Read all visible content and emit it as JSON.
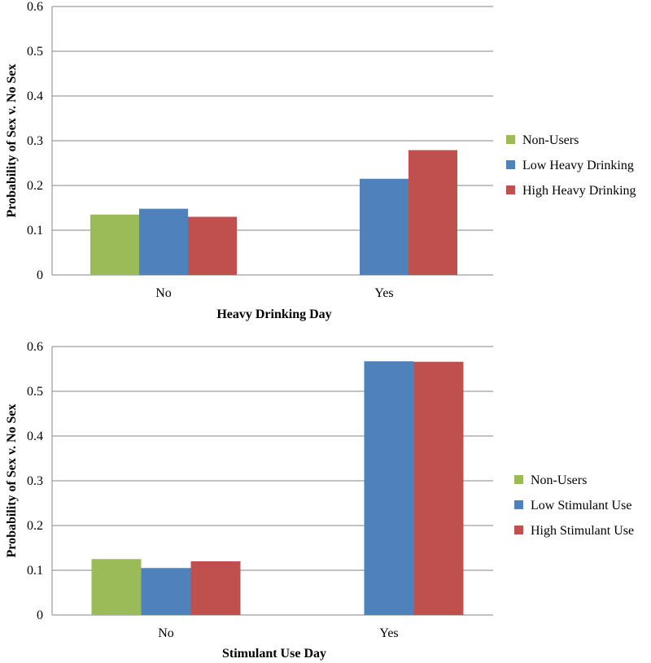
{
  "colors": {
    "Non-Users": "#9bbb59",
    "Low": "#4f81bd",
    "High": "#c0504d",
    "grid": "#868686"
  },
  "chart_data": [
    {
      "type": "bar",
      "title": "",
      "xlabel": "Heavy Drinking Day",
      "ylabel": "Probability of Sex v. No Sex",
      "ylim": [
        0,
        0.6
      ],
      "yticks": [
        "0",
        "0.1",
        "0.2",
        "0.3",
        "0.4",
        "0.5",
        "0.6"
      ],
      "grid": true,
      "legend_position": "right",
      "categories": [
        "No",
        "Yes"
      ],
      "series": [
        {
          "name": "Non-Users",
          "color_key": "Non-Users",
          "values": [
            0.135,
            null
          ]
        },
        {
          "name": "Low Heavy Drinking",
          "color_key": "Low",
          "values": [
            0.148,
            0.215
          ]
        },
        {
          "name": "High Heavy Drinking",
          "color_key": "High",
          "values": [
            0.13,
            0.279
          ]
        }
      ]
    },
    {
      "type": "bar",
      "title": "",
      "xlabel": "Stimulant Use Day",
      "ylabel": "Probability of Sex v. No Sex",
      "ylim": [
        0,
        0.6
      ],
      "yticks": [
        "0",
        "0.1",
        "0.2",
        "0.3",
        "0.4",
        "0.5",
        "0.6"
      ],
      "grid": true,
      "legend_position": "right",
      "categories": [
        "No",
        "Yes"
      ],
      "series": [
        {
          "name": "Non-Users",
          "color_key": "Non-Users",
          "values": [
            0.125,
            null
          ]
        },
        {
          "name": "Low Stimulant  Use",
          "color_key": "Low",
          "values": [
            0.105,
            0.567
          ]
        },
        {
          "name": "High Stimulant Use",
          "color_key": "High",
          "values": [
            0.12,
            0.566
          ]
        }
      ]
    }
  ]
}
